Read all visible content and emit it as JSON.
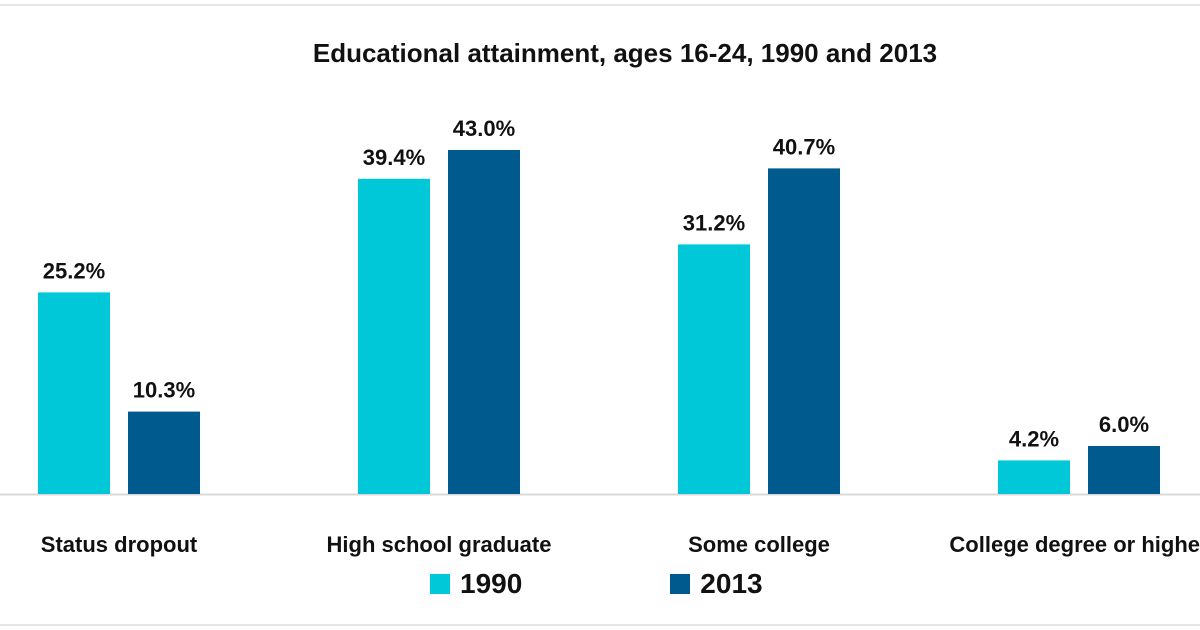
{
  "chart_data": {
    "type": "bar",
    "title": "Educational attainment, ages 16-24, 1990 and 2013",
    "categories": [
      "Status dropout",
      "High school graduate",
      "Some college",
      "College degree or higher"
    ],
    "series": [
      {
        "name": "1990",
        "values": [
          25.2,
          39.4,
          31.2,
          4.2
        ],
        "labels": [
          "25.2%",
          "39.4%",
          "31.2%",
          "4.2%"
        ],
        "color": "#00c8d8"
      },
      {
        "name": "2013",
        "values": [
          10.3,
          43.0,
          40.7,
          6.0
        ],
        "labels": [
          "10.3%",
          "43.0%",
          "40.7%",
          "6.0%"
        ],
        "color": "#005a8e"
      }
    ],
    "ylim": [
      0,
      50
    ],
    "grid": false,
    "legend_position": "bottom"
  }
}
